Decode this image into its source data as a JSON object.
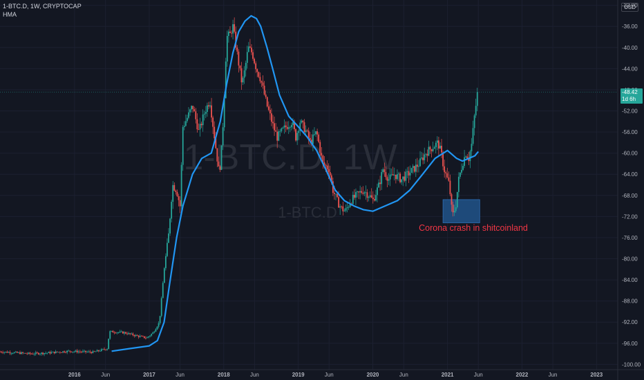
{
  "header": {
    "symbol_line": "1-BTC.D, 1W, CRYPTOCAP",
    "indicator": "HMA",
    "currency": "USD"
  },
  "watermark": {
    "large": "1-BTC.D, 1W",
    "small": "1-BTC.D"
  },
  "price_tag": {
    "value": "-48.42",
    "countdown": "1d 6h"
  },
  "colors": {
    "background": "#131722",
    "up": "#26a69a",
    "down": "#ef5350",
    "hma": "#2196f3",
    "annotation": "#f23645",
    "box": "#1e4a7a"
  },
  "chart_data": {
    "type": "candlestick",
    "symbol": "1-BTC.D",
    "interval": "1W",
    "exchange": "CRYPTOCAP",
    "ylim": [
      -101,
      -31
    ],
    "xlim": [
      "2015-01-01",
      "2023-04-15"
    ],
    "y_ticks": [
      -32,
      -36,
      -40,
      -44,
      -48,
      -52,
      -56,
      -60,
      -64,
      -68,
      -72,
      -76,
      -80,
      -84,
      -88,
      -92,
      -96,
      -100
    ],
    "y_tick_labels": [
      "-32.00",
      "-36.00",
      "-40.00",
      "-44.00",
      "-48.00",
      "-52.00",
      "-56.00",
      "-60.00",
      "-64.00",
      "-68.00",
      "-72.00",
      "-76.00",
      "-80.00",
      "-84.00",
      "-88.00",
      "-92.00",
      "-96.00",
      "-100.00"
    ],
    "x_ticks": [
      {
        "label": "2016",
        "date": "2016-01-01"
      },
      {
        "label": "Jun",
        "date": "2016-06-01"
      },
      {
        "label": "2017",
        "date": "2017-01-01"
      },
      {
        "label": "Jun",
        "date": "2017-06-01"
      },
      {
        "label": "2018",
        "date": "2018-01-01"
      },
      {
        "label": "Jun",
        "date": "2018-06-01"
      },
      {
        "label": "2019",
        "date": "2019-01-01"
      },
      {
        "label": "Jun",
        "date": "2019-06-01"
      },
      {
        "label": "2020",
        "date": "2020-01-01"
      },
      {
        "label": "Jun",
        "date": "2020-06-01"
      },
      {
        "label": "2021",
        "date": "2021-01-01"
      },
      {
        "label": "Jun",
        "date": "2021-06-01"
      },
      {
        "label": "2022",
        "date": "2022-01-01"
      },
      {
        "label": "Jun",
        "date": "2022-06-01"
      },
      {
        "label": "2023",
        "date": "2023-01-01"
      }
    ],
    "series": [
      {
        "indicator": "close_path",
        "points": [
          [
            "2015-01-01",
            -97.6
          ],
          [
            "2015-06-01",
            -98.0
          ],
          [
            "2015-09-01",
            -97.8
          ],
          [
            "2015-12-01",
            -97.5
          ],
          [
            "2016-04-01",
            -97.7
          ],
          [
            "2016-06-10",
            -97.0
          ],
          [
            "2016-06-20",
            -93.8
          ],
          [
            "2016-09-01",
            -94.0
          ],
          [
            "2016-11-01",
            -94.6
          ],
          [
            "2016-12-20",
            -95.0
          ],
          [
            "2017-01-20",
            -94.0
          ],
          [
            "2017-02-20",
            -92.0
          ],
          [
            "2017-03-15",
            -82.0
          ],
          [
            "2017-04-05",
            -76.0
          ],
          [
            "2017-04-25",
            -66.0
          ],
          [
            "2017-05-15",
            -67.0
          ],
          [
            "2017-06-01",
            -70.0
          ],
          [
            "2017-06-15",
            -55.0
          ],
          [
            "2017-07-10",
            -53.0
          ],
          [
            "2017-08-01",
            -51.0
          ],
          [
            "2017-09-01",
            -56.0
          ],
          [
            "2017-10-01",
            -52.0
          ],
          [
            "2017-10-25",
            -50.0
          ],
          [
            "2017-11-20",
            -58.0
          ],
          [
            "2017-12-10",
            -64.0
          ],
          [
            "2017-12-20",
            -60.0
          ],
          [
            "2018-01-01",
            -52.0
          ],
          [
            "2018-01-15",
            -38.0
          ],
          [
            "2018-02-01",
            -37.5
          ],
          [
            "2018-02-15",
            -36.0
          ],
          [
            "2018-03-01",
            -39.5
          ],
          [
            "2018-03-15",
            -43.0
          ],
          [
            "2018-04-01",
            -47.0
          ],
          [
            "2018-04-15",
            -44.0
          ],
          [
            "2018-05-01",
            -40.0
          ],
          [
            "2018-05-20",
            -41.0
          ],
          [
            "2018-06-10",
            -44.0
          ],
          [
            "2018-07-01",
            -46.0
          ],
          [
            "2018-08-01",
            -51.0
          ],
          [
            "2018-09-01",
            -55.0
          ],
          [
            "2018-09-20",
            -57.0
          ],
          [
            "2018-10-10",
            -56.0
          ],
          [
            "2018-11-01",
            -55.0
          ],
          [
            "2018-12-01",
            -54.0
          ],
          [
            "2018-12-20",
            -57.0
          ],
          [
            "2019-01-10",
            -54.0
          ],
          [
            "2019-02-10",
            -56.0
          ],
          [
            "2019-03-01",
            -58.0
          ],
          [
            "2019-04-01",
            -56.0
          ],
          [
            "2019-05-01",
            -62.0
          ],
          [
            "2019-06-01",
            -63.0
          ],
          [
            "2019-06-20",
            -67.0
          ],
          [
            "2019-07-10",
            -69.0
          ],
          [
            "2019-08-01",
            -70.5
          ],
          [
            "2019-08-20",
            -71.0
          ],
          [
            "2019-09-15",
            -69.0
          ],
          [
            "2019-10-15",
            -68.0
          ],
          [
            "2019-11-15",
            -67.0
          ],
          [
            "2019-12-15",
            -68.0
          ],
          [
            "2020-01-01",
            -69.0
          ],
          [
            "2020-02-01",
            -66.0
          ],
          [
            "2020-02-20",
            -63.0
          ],
          [
            "2020-03-20",
            -65.0
          ],
          [
            "2020-04-15",
            -64.0
          ],
          [
            "2020-05-20",
            -65.0
          ],
          [
            "2020-06-20",
            -64.0
          ],
          [
            "2020-07-20",
            -63.0
          ],
          [
            "2020-08-15",
            -62.0
          ],
          [
            "2020-09-15",
            -60.0
          ],
          [
            "2020-10-15",
            -59.0
          ],
          [
            "2020-11-15",
            -58.0
          ],
          [
            "2020-12-01",
            -60.0
          ],
          [
            "2020-12-15",
            -63.0
          ],
          [
            "2021-01-10",
            -66.0
          ],
          [
            "2021-01-25",
            -72.0
          ],
          [
            "2021-02-10",
            -70.0
          ],
          [
            "2021-02-25",
            -65.0
          ],
          [
            "2021-03-15",
            -62.0
          ],
          [
            "2021-04-01",
            -60.0
          ],
          [
            "2021-04-15",
            -61.0
          ],
          [
            "2021-05-01",
            -58.0
          ],
          [
            "2021-05-10",
            -54.0
          ],
          [
            "2021-05-20",
            -51.0
          ],
          [
            "2021-05-31",
            -48.42
          ]
        ]
      },
      {
        "name": "HMA",
        "points": [
          [
            "2016-07-01",
            -97.5
          ],
          [
            "2016-10-01",
            -97.0
          ],
          [
            "2017-01-01",
            -96.5
          ],
          [
            "2017-02-10",
            -95.5
          ],
          [
            "2017-03-15",
            -92.0
          ],
          [
            "2017-04-10",
            -85.0
          ],
          [
            "2017-05-15",
            -76.0
          ],
          [
            "2017-06-15",
            -70.0
          ],
          [
            "2017-08-01",
            -64.0
          ],
          [
            "2017-09-15",
            -61.0
          ],
          [
            "2017-11-01",
            -60.0
          ],
          [
            "2017-12-15",
            -54.0
          ],
          [
            "2018-01-15",
            -47.0
          ],
          [
            "2018-02-15",
            -41.0
          ],
          [
            "2018-03-15",
            -37.0
          ],
          [
            "2018-04-15",
            -35.0
          ],
          [
            "2018-05-15",
            -34.0
          ],
          [
            "2018-06-10",
            -34.5
          ],
          [
            "2018-07-01",
            -36.0
          ],
          [
            "2018-08-01",
            -40.0
          ],
          [
            "2018-09-01",
            -44.5
          ],
          [
            "2018-10-01",
            -49.0
          ],
          [
            "2018-11-15",
            -53.0
          ],
          [
            "2019-01-01",
            -55.0
          ],
          [
            "2019-02-15",
            -57.0
          ],
          [
            "2019-04-01",
            -59.5
          ],
          [
            "2019-05-15",
            -63.0
          ],
          [
            "2019-07-01",
            -67.0
          ],
          [
            "2019-08-15",
            -69.0
          ],
          [
            "2019-10-01",
            -70.0
          ],
          [
            "2019-11-15",
            -70.7
          ],
          [
            "2020-01-01",
            -71.0
          ],
          [
            "2020-03-01",
            -70.0
          ],
          [
            "2020-05-01",
            -69.0
          ],
          [
            "2020-07-01",
            -67.0
          ],
          [
            "2020-09-01",
            -64.0
          ],
          [
            "2020-11-01",
            -61.0
          ],
          [
            "2021-01-01",
            -59.5
          ],
          [
            "2021-02-15",
            -61.0
          ],
          [
            "2021-03-15",
            -61.5
          ],
          [
            "2021-04-15",
            -61.0
          ],
          [
            "2021-05-15",
            -60.5
          ],
          [
            "2021-06-01",
            -59.7
          ]
        ]
      }
    ],
    "last_price": -48.42,
    "annotation": {
      "text": "Corona crash in shitcoinland",
      "box": {
        "x": [
          "2020-12-10",
          "2021-06-08"
        ],
        "y": [
          -68.8,
          -73.2
        ]
      }
    }
  }
}
